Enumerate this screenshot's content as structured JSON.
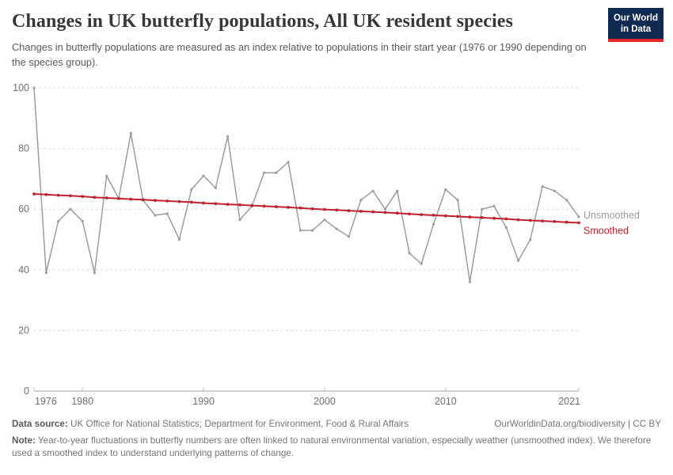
{
  "header": {
    "title": "Changes in UK butterfly populations, All UK resident species",
    "subtitle": "Changes in butterfly populations are measured as an index relative to populations in their start year (1976 or 1990 depending on the species group).",
    "logo": {
      "line1": "Our World",
      "line2": "in Data"
    }
  },
  "chart_data": {
    "type": "line",
    "title": "Changes in UK butterfly populations, All UK resident species",
    "xlabel": "",
    "ylabel": "",
    "xlim": [
      1976,
      2021
    ],
    "ylim": [
      0,
      100
    ],
    "xticks": [
      1976,
      1980,
      1990,
      2000,
      2010,
      2021
    ],
    "yticks": [
      0,
      20,
      40,
      60,
      80,
      100
    ],
    "grid": "horizontal-dashed",
    "legend_position": "line-end-labels",
    "x": [
      1976,
      1977,
      1978,
      1979,
      1980,
      1981,
      1982,
      1983,
      1984,
      1985,
      1986,
      1987,
      1988,
      1989,
      1990,
      1991,
      1992,
      1993,
      1994,
      1995,
      1996,
      1997,
      1998,
      1999,
      2000,
      2001,
      2002,
      2003,
      2004,
      2005,
      2006,
      2007,
      2008,
      2009,
      2010,
      2011,
      2012,
      2013,
      2014,
      2015,
      2016,
      2017,
      2018,
      2019,
      2020,
      2021
    ],
    "series": [
      {
        "name": "Unsmoothed",
        "color": "#9c9c9c",
        "values": [
          100,
          39,
          56,
          60,
          56,
          39,
          71,
          63.5,
          85,
          63,
          58,
          58.5,
          50,
          66.5,
          71,
          67,
          84,
          56.5,
          61,
          72,
          72,
          75.5,
          53,
          53,
          56.5,
          53.5,
          51,
          63,
          66,
          60,
          66,
          45.5,
          42,
          55,
          66.5,
          63,
          36,
          60,
          61,
          54,
          43,
          50,
          67.5,
          66,
          63,
          57.5
        ]
      },
      {
        "name": "Smoothed",
        "color": "#bf212f",
        "values": [
          65.0,
          64.8,
          64.6,
          64.4,
          64.2,
          63.9,
          63.7,
          63.5,
          63.3,
          63.1,
          62.9,
          62.7,
          62.5,
          62.3,
          62.0,
          61.8,
          61.6,
          61.4,
          61.2,
          61.0,
          60.8,
          60.6,
          60.4,
          60.1,
          59.9,
          59.7,
          59.5,
          59.3,
          59.1,
          58.9,
          58.7,
          58.4,
          58.2,
          58.0,
          57.8,
          57.6,
          57.4,
          57.2,
          57.0,
          56.8,
          56.5,
          56.3,
          56.1,
          55.9,
          55.7,
          55.5
        ]
      }
    ]
  },
  "footer": {
    "source_label": "Data source:",
    "source_text": " UK Office for National Statistics; Department for Environment, Food & Rural Affairs",
    "link_text": "OurWorldinData.org/biodiversity | CC BY",
    "note_label": "Note:",
    "note_text": " Year-to-year fluctuations in butterfly numbers are often linked to natural environmental variation, especially weather (unsmoothed index). We therefore used a smoothed index to understand underlying patterns of change."
  },
  "colors": {
    "accent_red": "#bf212f",
    "line_gray": "#9c9c9c",
    "grid": "#dcdcdc",
    "axis": "#a0a0a0",
    "logo_bg": "#102a52",
    "logo_stripe": "#e02828"
  }
}
